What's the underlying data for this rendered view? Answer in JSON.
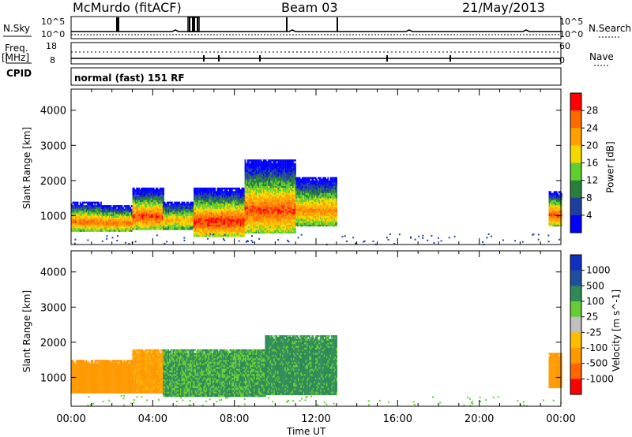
{
  "header": {
    "station": "McMurdo (fitACF)",
    "beam": "Beam 03",
    "date": "21/May/2013"
  },
  "status": {
    "nsky_label": "N.Sky",
    "nsky_ticks": [
      "10^5",
      "10^0"
    ],
    "nsearch_label": "N.Search",
    "nsearch_ticks": [
      "10^5",
      "10^0"
    ],
    "freq_label": "Freq.",
    "freq_unit": "[MHz]",
    "freq_ticks": [
      "18",
      "8"
    ],
    "nave_label": "Nave",
    "nave_ticks": [
      "60",
      "0"
    ],
    "cpid_label": "CPID",
    "cpid_value": "normal (fast) 151 RF"
  },
  "colors": {
    "power": [
      "#0000ff",
      "#1f3fa0",
      "#2a7f3c",
      "#5fcf2f",
      "#f5d800",
      "#ffa000",
      "#ff6a00",
      "#ff0000"
    ],
    "velocity": [
      "#ff0000",
      "#ff6600",
      "#ff9900",
      "#ffbb00",
      "#c0c0c0",
      "#66cc33",
      "#2e8b57",
      "#1f4fa0",
      "#1030c0"
    ]
  },
  "chart_data": [
    {
      "type": "heatmap",
      "name": "Power",
      "ylabel": "Slant Range [km]",
      "xlabel": "Time UT",
      "xlim": [
        "00:00",
        "24:00"
      ],
      "ylim": [
        180,
        4600
      ],
      "x_ticks": [
        "00:00",
        "04:00",
        "08:00",
        "12:00",
        "16:00",
        "20:00",
        "00:00"
      ],
      "y_ticks": [
        1000,
        2000,
        3000,
        4000
      ],
      "colorbar_label": "Power [dB]",
      "colorbar_ticks": [
        "4",
        "8",
        "12",
        "16",
        "20",
        "24",
        "28"
      ],
      "colorbar_range": [
        0,
        32
      ],
      "echo_regions": [
        {
          "t": [
            0.0,
            1.5
          ],
          "range_km": [
            550,
            1400
          ],
          "power_db_peak": 26
        },
        {
          "t": [
            1.5,
            3.0
          ],
          "range_km": [
            550,
            1300
          ],
          "power_db_peak": 26
        },
        {
          "t": [
            3.0,
            4.5
          ],
          "range_km": [
            600,
            1800
          ],
          "power_db_peak": 28
        },
        {
          "t": [
            4.5,
            6.0
          ],
          "range_km": [
            600,
            1400
          ],
          "power_db_peak": 22
        },
        {
          "t": [
            6.0,
            8.5
          ],
          "range_km": [
            400,
            1800
          ],
          "power_db_peak": 30
        },
        {
          "t": [
            8.5,
            11.0
          ],
          "range_km": [
            500,
            2600
          ],
          "power_db_peak": 28
        },
        {
          "t": [
            11.0,
            13.0
          ],
          "range_km": [
            700,
            2100
          ],
          "power_db_peak": 24
        },
        {
          "t": [
            23.4,
            24.0
          ],
          "range_km": [
            700,
            1700
          ],
          "power_db_peak": 28
        }
      ]
    },
    {
      "type": "heatmap",
      "name": "Velocity",
      "ylabel": "Slant Range [km]",
      "xlabel": "Time UT",
      "xlim": [
        "00:00",
        "24:00"
      ],
      "ylim": [
        180,
        4600
      ],
      "x_ticks": [
        "00:00",
        "04:00",
        "08:00",
        "12:00",
        "16:00",
        "20:00",
        "00:00"
      ],
      "y_ticks": [
        1000,
        2000,
        3000,
        4000
      ],
      "colorbar_label": "Velocity [m s^-1]",
      "colorbar_ticks": [
        "1000",
        "500",
        "100",
        "25",
        "-25",
        "-100",
        "-500",
        "-1000"
      ],
      "echo_regions": [
        {
          "t": [
            0.0,
            3.0
          ],
          "range_km": [
            550,
            1500
          ],
          "velocity_ms": -200
        },
        {
          "t": [
            3.0,
            4.5
          ],
          "range_km": [
            550,
            1800
          ],
          "velocity_ms": -150
        },
        {
          "t": [
            4.5,
            9.5
          ],
          "range_km": [
            450,
            1800
          ],
          "velocity_ms": 120
        },
        {
          "t": [
            9.5,
            13.0
          ],
          "range_km": [
            500,
            2200
          ],
          "velocity_ms": 150
        },
        {
          "t": [
            23.4,
            24.0
          ],
          "range_km": [
            700,
            1700
          ],
          "velocity_ms": -200
        }
      ]
    }
  ]
}
